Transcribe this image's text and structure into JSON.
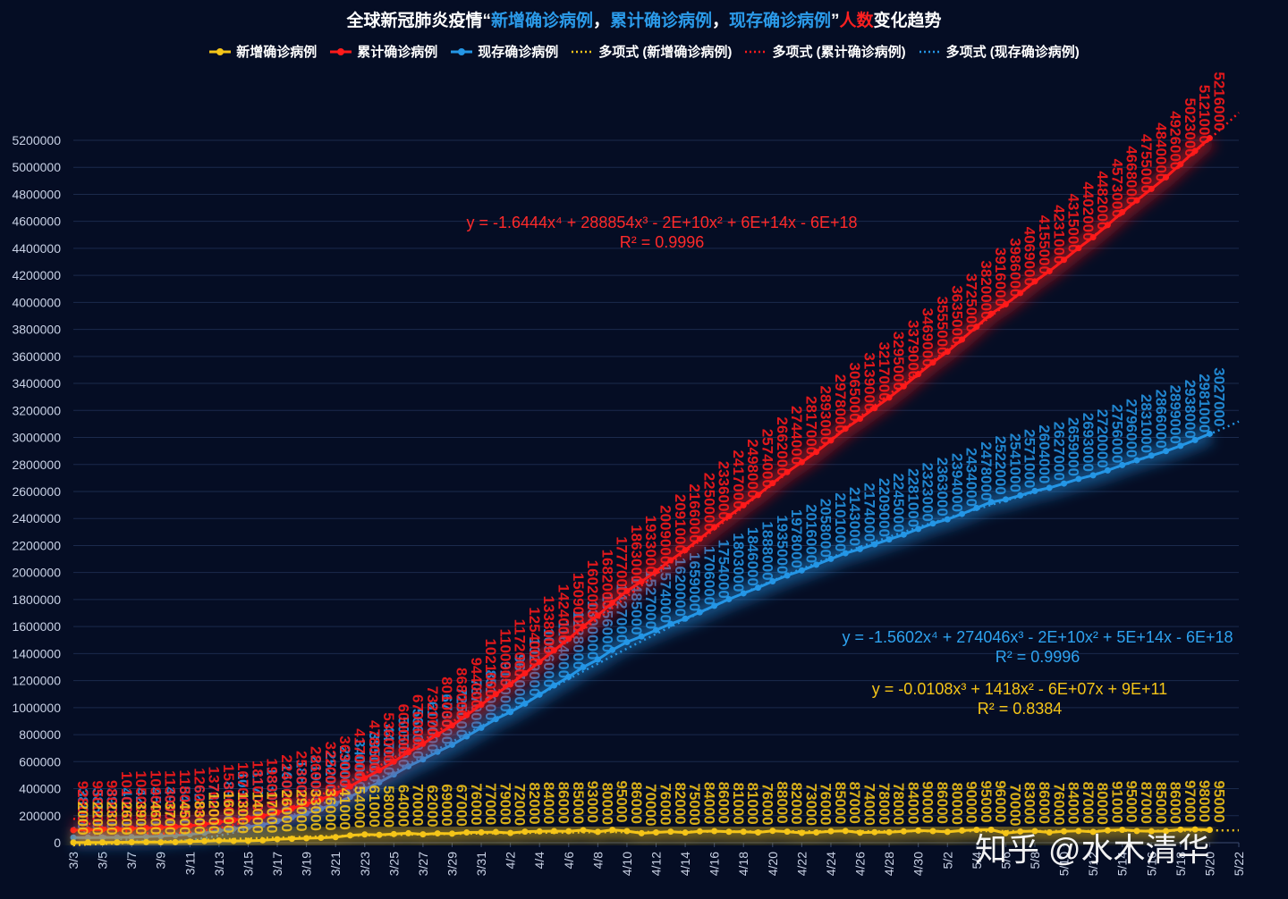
{
  "title": {
    "part1": "全球新冠肺炎疫情“",
    "part2": "新增确诊病例",
    "sep1": "，",
    "part3": "累计确诊病例",
    "sep2": "，",
    "part4": "现存确诊病例",
    "part5": "”",
    "part6": "人数",
    "part7": "变化趋势"
  },
  "legend": [
    {
      "label": "新增确诊病例",
      "color": "#f5c518",
      "style": "marker-line"
    },
    {
      "label": "累计确诊病例",
      "color": "#ff1a1a",
      "style": "marker-line"
    },
    {
      "label": "现存确诊病例",
      "color": "#2496e6",
      "style": "marker-line"
    },
    {
      "label": "多项式 (新增确诊病例)",
      "color": "#f5c518",
      "style": "dotted"
    },
    {
      "label": "多项式 (累计确诊病例)",
      "color": "#ff1a1a",
      "style": "dotted"
    },
    {
      "label": "多项式 (现存确诊病例)",
      "color": "#2496e6",
      "style": "dotted"
    }
  ],
  "equations": {
    "cumulative": {
      "line1": "y = -1.6444x⁴ + 288854x³ - 2E+10x² + 6E+14x - 6E+18",
      "line2": "R² = 0.9996",
      "color": "#ff2a2a"
    },
    "active": {
      "line1": "y = -1.5602x⁴ + 274046x³ - 2E+10x² + 5E+14x - 6E+18",
      "line2": "R² = 0.9996",
      "color": "#2ea3f0"
    },
    "new": {
      "line1": "y = -0.0108x³ + 1418x² - 6E+07x + 9E+11",
      "line2": "R² = 0.8384",
      "color": "#f5c518"
    }
  },
  "watermark": "知乎 @水木清华",
  "chart_data": {
    "type": "line",
    "ylim": [
      0,
      5200000
    ],
    "yticks": [
      "0",
      "200000",
      "400000",
      "600000",
      "800000",
      "1000000",
      "1200000",
      "1400000",
      "1600000",
      "1800000",
      "2000000",
      "2200000",
      "2400000",
      "2600000",
      "2800000",
      "3000000",
      "3200000",
      "3400000",
      "3600000",
      "3800000",
      "4000000",
      "4200000",
      "4400000",
      "4600000",
      "4800000",
      "5000000",
      "5200000"
    ],
    "x_tick_labels": [
      "3/3",
      "3/5",
      "3/7",
      "3/9",
      "3/11",
      "3/13",
      "3/15",
      "3/17",
      "3/19",
      "3/21",
      "3/23",
      "3/25",
      "3/27",
      "3/29",
      "3/31",
      "4/2",
      "4/4",
      "4/6",
      "4/8",
      "4/10",
      "4/12",
      "4/14",
      "4/16",
      "4/18",
      "4/20",
      "4/22",
      "4/24",
      "4/26",
      "4/28",
      "4/30",
      "5/2",
      "5/4",
      "5/6",
      "5/8",
      "5/10",
      "5/12",
      "5/14",
      "5/16",
      "5/18",
      "5/20",
      "5/22"
    ],
    "series": [
      {
        "name": "新增确诊病例",
        "color": "#f5c518",
        "values": [
          2000,
          2200,
          2300,
          2600,
          3900,
          4600,
          3700,
          4500,
          8300,
          12000,
          16000,
          13000,
          14000,
          17000,
          26000,
          29000,
          33000,
          36000,
          41000,
          54000,
          61000,
          58000,
          64000,
          70000,
          62000,
          69000,
          67000,
          76000,
          77000,
          79000,
          72000,
          82000,
          84000,
          86000,
          85000,
          93000,
          80000,
          95000,
          86000,
          70000,
          76000,
          82000,
          75000,
          84000,
          86000,
          81000,
          81000,
          76000,
          88000,
          82000,
          73000,
          76000,
          85000,
          87000,
          74000,
          78000,
          78000,
          84000,
          90000,
          86000,
          80000,
          90000,
          95000,
          96000,
          70000,
          83000,
          86000,
          76000,
          84000,
          87000,
          80000,
          91000,
          95000,
          87000,
          85000,
          86000,
          97000,
          98000,
          95000
        ]
      },
      {
        "name": "累计确诊病例",
        "color": "#ff1a1a",
        "values": [
          92800,
          95000,
          98000,
          101000,
          105000,
          109000,
          113000,
          118000,
          126000,
          137000,
          153000,
          167000,
          181000,
          198000,
          224000,
          253000,
          286000,
          322000,
          363000,
          417000,
          478000,
          536000,
          600000,
          670000,
          732000,
          801000,
          868000,
          944000,
          1021000,
          1100000,
          1172000,
          1254000,
          1338000,
          1424000,
          1509000,
          1602000,
          1682000,
          1777000,
          1863000,
          1933000,
          2009000,
          2091000,
          2166000,
          2250000,
          2336000,
          2417000,
          2498000,
          2574000,
          2662000,
          2744000,
          2817000,
          2893000,
          2978000,
          3065000,
          3139000,
          3217000,
          3295000,
          3379000,
          3469000,
          3555000,
          3635000,
          3725000,
          3820000,
          3916000,
          3986000,
          4069000,
          4155000,
          4231000,
          4315000,
          4402000,
          4482000,
          4573000,
          4668000,
          4755000,
          4840000,
          4926000,
          5023000,
          5121000,
          5216000
        ]
      },
      {
        "name": "现存确诊病例",
        "color": "#2496e6",
        "values": [
          38000,
          38500,
          39000,
          40000,
          42000,
          45000,
          49000,
          54000,
          62000,
          73000,
          89000,
          103000,
          117000,
          133000,
          160000,
          188000,
          219000,
          252000,
          290000,
          340000,
          395000,
          447000,
          505000,
          566000,
          617000,
          673000,
          725000,
          787000,
          851000,
          915000,
          967000,
          1029000,
          1096000,
          1164000,
          1228000,
          1300000,
          1356000,
          1427000,
          1485000,
          1527000,
          1574000,
          1620000,
          1659000,
          1706000,
          1754000,
          1803000,
          1846000,
          1888000,
          1935000,
          1978000,
          2016000,
          2058000,
          2101000,
          2143000,
          2174000,
          2209000,
          2245000,
          2281000,
          2323000,
          2363000,
          2394000,
          2434000,
          2478000,
          2522000,
          2541000,
          2571000,
          2604000,
          2627000,
          2659000,
          2693000,
          2720000,
          2756000,
          2796000,
          2831000,
          2866000,
          2899000,
          2938000,
          2981000,
          3027000
        ]
      }
    ]
  }
}
